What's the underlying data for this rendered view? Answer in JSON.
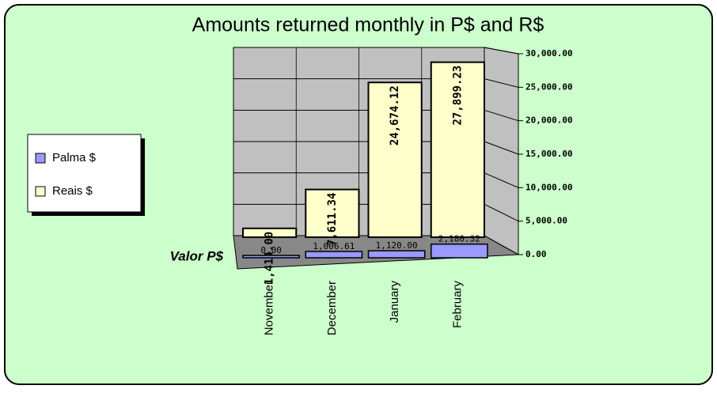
{
  "chart_data": {
    "type": "bar3d",
    "title": "Amounts returned monthly in P$ and R$",
    "y_axis_label": "Valor P$",
    "categories": [
      "November",
      "December",
      "January",
      "February"
    ],
    "series": [
      {
        "name": "Palma $",
        "color": "#9999ff",
        "values": [
          0,
          1006.61,
          1120,
          2180.32
        ],
        "value_labels": [
          "0.00",
          "1,006.61",
          "1,120.00",
          "2,180.32"
        ]
      },
      {
        "name": "Reais $",
        "color": "#ffffcc",
        "values": [
          1414,
          7611.34,
          24674.12,
          27899.23
        ],
        "value_labels": [
          "1,414.00",
          "7,611.34",
          "24,674.12",
          "27,899.23"
        ]
      }
    ],
    "ylim": [
      0,
      30000
    ],
    "yticks": [
      {
        "value": 0,
        "label": "0.00"
      },
      {
        "value": 5000,
        "label": "5,000.00"
      },
      {
        "value": 10000,
        "label": "10,000.00"
      },
      {
        "value": 15000,
        "label": "15,000.00"
      },
      {
        "value": 20000,
        "label": "20,000.00"
      },
      {
        "value": 25000,
        "label": "25,000.00"
      },
      {
        "value": 30000,
        "label": "30,000.00"
      }
    ],
    "grid": true,
    "legend": "left"
  }
}
